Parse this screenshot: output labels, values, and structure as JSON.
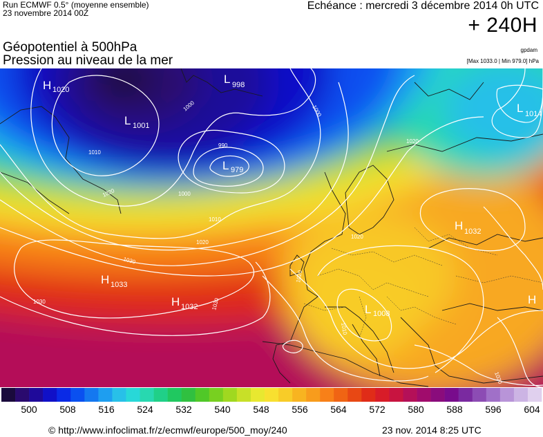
{
  "header": {
    "run_line": "Run ECMWF 0.5° (moyenne ensemble)",
    "run_date": "23 novembre 2014 00Z",
    "valid_time": "Echéance : mercredi 3 décembre 2014 0h UTC",
    "lead_time": "+ 240H",
    "title_line1": "Géopotentiel à 500hPa",
    "title_line2": "Pression au niveau de la mer",
    "credit": "gpdam",
    "max_min": "[Max 1033.0 | Min 979.0] hPa"
  },
  "pressure_centers": [
    {
      "type": "H",
      "value": "1020"
    },
    {
      "type": "L",
      "value": "998"
    },
    {
      "type": "L",
      "value": "1001"
    },
    {
      "type": "L",
      "value": "979"
    },
    {
      "type": "L",
      "value": "1014"
    },
    {
      "type": "H",
      "value": "1032"
    },
    {
      "type": "H",
      "value": "1033"
    },
    {
      "type": "H",
      "value": "1032"
    },
    {
      "type": "L",
      "value": "1008"
    },
    {
      "type": "H",
      "value": ""
    }
  ],
  "isobar_labels": [
    "1000",
    "1000",
    "990",
    "1010",
    "1000",
    "1010",
    "1020",
    "1020",
    "1030",
    "1030",
    "1030",
    "1020",
    "1010",
    "1020",
    "1020",
    "1020"
  ],
  "colorbar": {
    "unit": "gpdam",
    "ticks": [
      "500",
      "508",
      "516",
      "524",
      "532",
      "540",
      "548",
      "556",
      "564",
      "572",
      "580",
      "588",
      "596",
      "604"
    ],
    "colors": [
      "#1a0a3c",
      "#2a0a6e",
      "#1f0a9a",
      "#1010c8",
      "#0a2ae6",
      "#0a50f0",
      "#1478f0",
      "#1e9ef0",
      "#28c0e8",
      "#28d8d8",
      "#28d8b0",
      "#20d088",
      "#20c860",
      "#30c040",
      "#50c828",
      "#78d020",
      "#a0d820",
      "#c8e028",
      "#e8e830",
      "#f8e030",
      "#f8cc28",
      "#f8b420",
      "#f89c1c",
      "#f88018",
      "#f06414",
      "#e84814",
      "#e02c18",
      "#d81c28",
      "#c81440",
      "#b41058",
      "#a00c6c",
      "#8a0c7c",
      "#780c8c",
      "#7a2aa0",
      "#8c4cb4",
      "#a070c8",
      "#b894d8",
      "#ccb4e4",
      "#e0d0ee"
    ]
  },
  "footer": {
    "url": "© http://www.infoclimat.fr/z/ecmwf/europe/500_moy/240",
    "stamp": "23 nov. 2014  8:25 UTC"
  }
}
